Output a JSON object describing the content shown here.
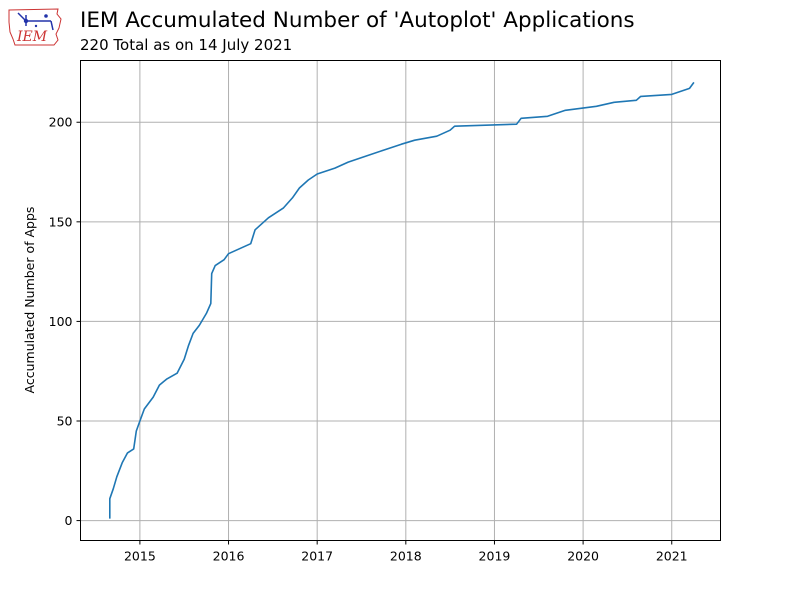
{
  "header": {
    "title": "IEM Accumulated Number of 'Autoplot' Applications",
    "subtitle": "220 Total as on 14 July 2021",
    "logo_text": "IEM"
  },
  "chart_data": {
    "type": "line",
    "title": "IEM Accumulated Number of 'Autoplot' Applications",
    "subtitle": "220 Total as on 14 July 2021",
    "xlabel": "",
    "ylabel": "Accumulated Number of Apps",
    "xlim": [
      2014.33,
      2021.55
    ],
    "ylim": [
      -10,
      231
    ],
    "x_ticks": [
      2015,
      2016,
      2017,
      2018,
      2019,
      2020,
      2021
    ],
    "x_tick_labels": [
      "2015",
      "2016",
      "2017",
      "2018",
      "2019",
      "2020",
      "2021"
    ],
    "y_ticks": [
      0,
      50,
      100,
      150,
      200
    ],
    "y_tick_labels": [
      "0",
      "50",
      "100",
      "150",
      "200"
    ],
    "grid": true,
    "legend": "none",
    "line_color": "#1f77b4",
    "series": [
      {
        "x": [
          2014.66,
          2014.66,
          2014.7,
          2014.74,
          2014.8,
          2014.86,
          2014.93,
          2014.96,
          2015.0,
          2015.05,
          2015.15,
          2015.22,
          2015.3,
          2015.42,
          2015.5,
          2015.55,
          2015.6,
          2015.67,
          2015.75,
          2015.8,
          2015.81,
          2015.85,
          2015.95,
          2016.0,
          2016.25,
          2016.3,
          2016.45,
          2016.62,
          2016.72,
          2016.8,
          2016.9,
          2017.0,
          2017.2,
          2017.35,
          2017.55,
          2017.75,
          2017.95,
          2018.1,
          2018.35,
          2018.5,
          2018.55,
          2019.25,
          2019.3,
          2019.6,
          2019.8,
          2020.15,
          2020.35,
          2020.6,
          2020.65,
          2021.0,
          2021.2,
          2021.25
        ],
        "y": [
          1,
          11,
          16,
          22,
          29,
          34,
          36,
          45,
          50,
          56,
          62,
          68,
          71,
          74,
          81,
          88,
          94,
          98,
          104,
          109,
          124,
          128,
          131,
          134,
          139,
          146,
          152,
          157,
          162,
          167,
          171,
          174,
          177,
          180,
          183,
          186,
          189,
          191,
          193,
          196,
          198,
          199,
          202,
          203,
          206,
          208,
          210,
          211,
          213,
          214,
          217,
          220
        ]
      }
    ]
  }
}
